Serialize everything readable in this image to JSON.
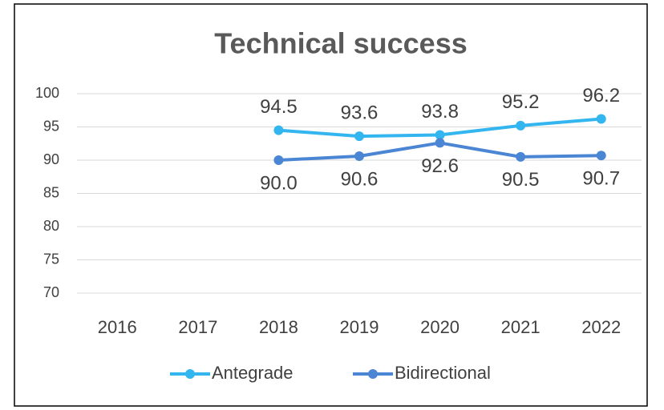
{
  "chart_data": {
    "type": "line",
    "title": "Technical  success",
    "categories": [
      "2016",
      "2017",
      "2018",
      "2019",
      "2020",
      "2021",
      "2022"
    ],
    "series": [
      {
        "name": "Antegrade",
        "color": "#33b5f0",
        "values": [
          null,
          null,
          94.5,
          93.6,
          93.8,
          95.2,
          96.2
        ]
      },
      {
        "name": "Bidirectional",
        "color": "#4a86d4",
        "values": [
          null,
          null,
          90.0,
          90.6,
          92.6,
          90.5,
          90.7
        ],
        "value_labels": [
          null,
          null,
          "90.0",
          "90.6",
          "92.6",
          "90.5",
          "90.7"
        ]
      }
    ],
    "ylim": [
      70,
      100
    ],
    "yticks": [
      70,
      75,
      80,
      85,
      90,
      95,
      100
    ],
    "grid": true,
    "legend": "bottom"
  }
}
